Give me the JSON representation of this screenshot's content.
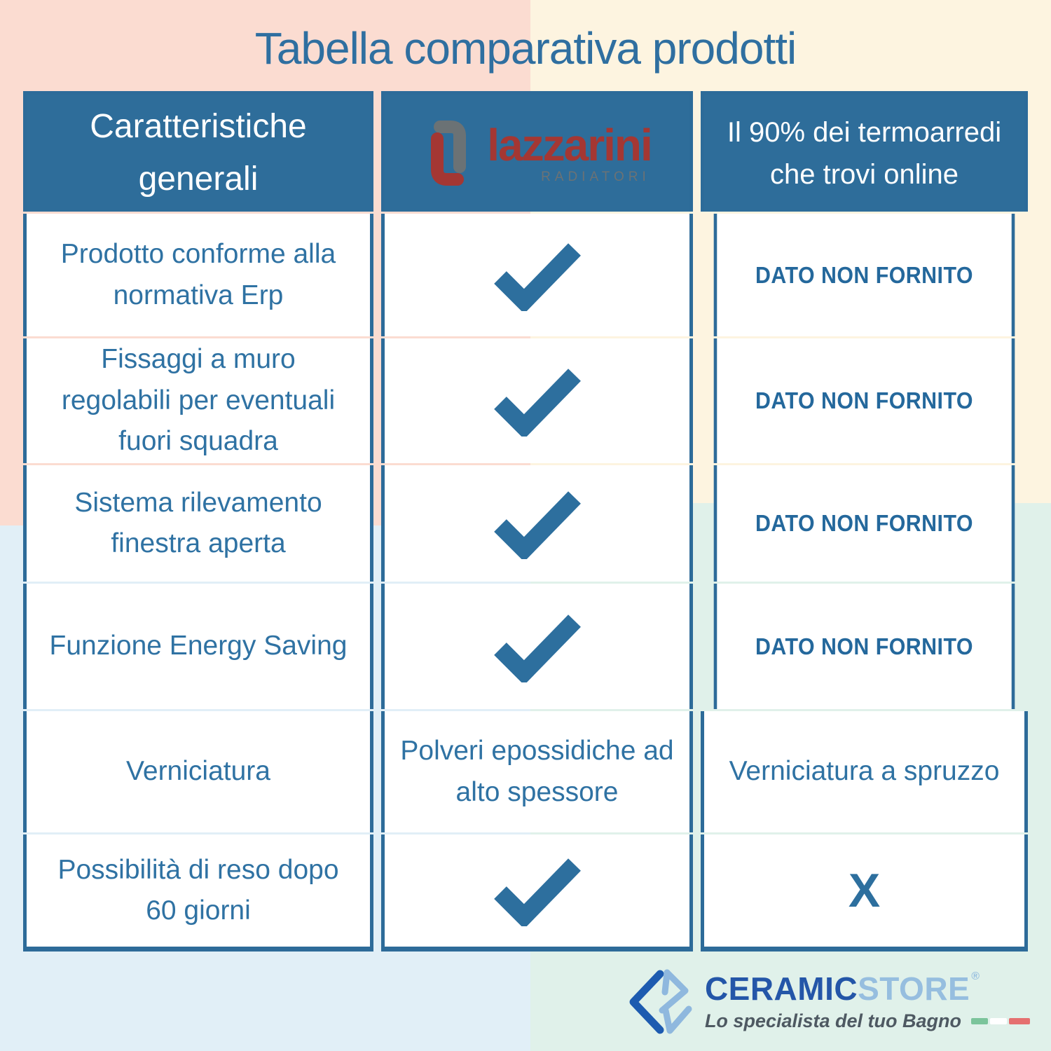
{
  "title": "Tabella comparativa prodotti",
  "table": {
    "header": {
      "features_label": "Caratteristiche generali",
      "lazzarini_logo": {
        "brand": "lazzarini",
        "sub_brand": "RADIATORI"
      },
      "competitor_label": "Il 90% dei termoarredi che trovi online"
    },
    "rows": [
      {
        "feature": "Prodotto conforme alla normativa Erp",
        "lazzarini": "✓",
        "others": "DATO NON FORNITO"
      },
      {
        "feature": "Fissaggi a muro regolabili per eventuali fuori squadra",
        "lazzarini": "✓",
        "others": "DATO NON FORNITO"
      },
      {
        "feature": "Sistema rilevamento finestra aperta",
        "lazzarini": "✓",
        "others": "DATO NON FORNITO"
      },
      {
        "feature": "Funzione Energy Saving",
        "lazzarini": "✓",
        "others": "DATO NON FORNITO"
      },
      {
        "feature": "Verniciatura",
        "lazzarini": "Polveri epossidiche ad alto spessore",
        "others": "Verniciatura a spruzzo"
      },
      {
        "feature": "Possibilità di reso dopo 60 giorni",
        "lazzarini": "✓",
        "others": "X"
      }
    ],
    "check_symbol": "✓",
    "x_symbol": "X",
    "dato_non_fornito": "DATO NON FORNITO"
  },
  "footer_logo": {
    "brand_part1": "CERAMIC",
    "brand_part2": "STORE",
    "registered_mark": "®",
    "tagline": "Lo specialista del tuo Bagno"
  },
  "colors": {
    "table_blue": "#2d6b99",
    "header_blue": "#2e6d9a",
    "cell_text_blue": "#2f72a3",
    "check_blue": "#2d6f9e",
    "title_blue": "#2f6fa0",
    "lazzarini_red": "#a43733",
    "lazzarini_gray": "#6b7275",
    "ceramicstore_dark_blue": "#2456a8",
    "ceramicstore_light_blue": "#96bedf",
    "bg_peach": "#fbdcd1",
    "bg_cream": "#fdf4e0",
    "bg_azure": "#e1eff7",
    "bg_mint": "#e0f1ea",
    "flag_green": "#7bc49b",
    "flag_white": "#ffffff",
    "flag_red": "#e57070"
  }
}
